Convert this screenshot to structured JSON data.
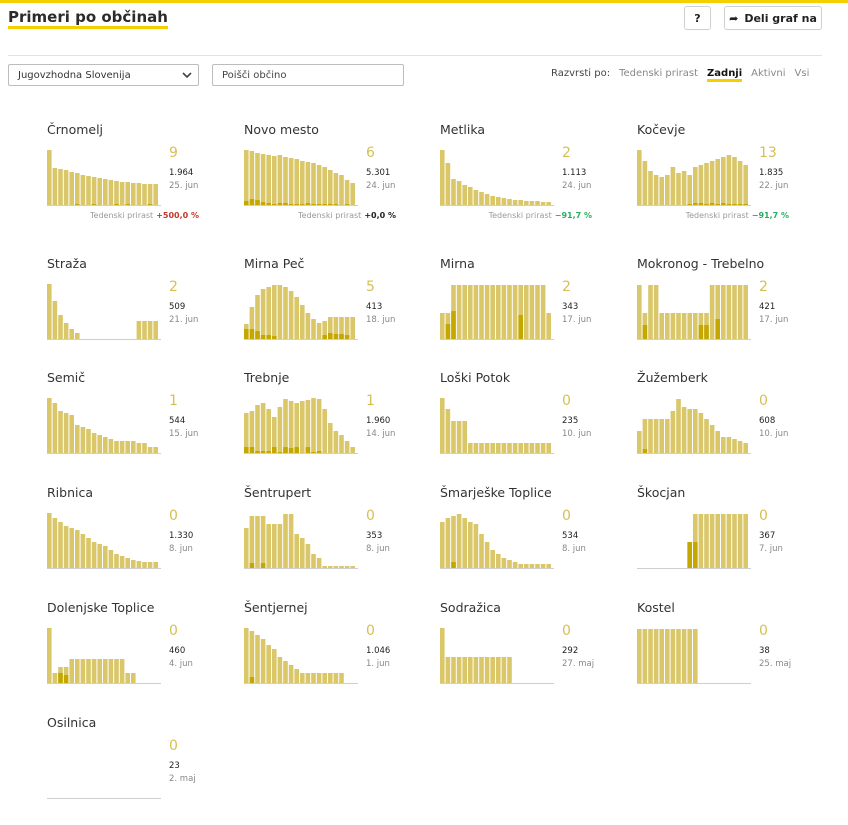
{
  "header": {
    "title": "Primeri po občinah",
    "help_label": "?",
    "share_label": "Deli graf na"
  },
  "filters": {
    "region_value": "Jugovzhodna Slovenija",
    "search_placeholder": "Poišči občino"
  },
  "sort": {
    "label": "Razvrsti po:",
    "options": [
      "Tedenski prirast",
      "Zadnji",
      "Aktivni",
      "Vsi"
    ],
    "active": "Zadnji"
  },
  "colors": {
    "accent": "#f4d000",
    "bar": "#d9c76a",
    "bar_dark": "#c4a800",
    "growth_up": "#c0392b",
    "growth_down": "#27ae60",
    "neutral": "#222222"
  },
  "growth_label": "Tedenski prirast",
  "municipalities": [
    {
      "name": "Črnomelj",
      "current": "9",
      "total": "1.964",
      "date": "25. jun",
      "growth": "+500,0 %",
      "growth_color": "up",
      "bars": [
        55,
        37,
        36,
        35,
        33,
        32,
        30,
        29,
        28,
        27,
        26,
        25,
        24,
        23,
        23,
        22,
        22,
        21,
        21,
        21
      ],
      "dark": [
        0,
        0,
        0,
        0,
        0,
        1,
        0,
        0,
        1,
        0,
        0,
        0,
        1,
        0,
        1,
        0,
        0,
        0,
        1,
        0
      ]
    },
    {
      "name": "Novo mesto",
      "current": "6",
      "total": "5.301",
      "date": "24. jun",
      "growth": "+0,0 %",
      "growth_color": "neutral",
      "bars": [
        55,
        54,
        52,
        51,
        50,
        49,
        50,
        48,
        47,
        46,
        44,
        43,
        42,
        40,
        38,
        35,
        32,
        30,
        25,
        22
      ],
      "dark": [
        4,
        6,
        5,
        3,
        2,
        1,
        2,
        2,
        1,
        1,
        1,
        2,
        1,
        1,
        1,
        1,
        1,
        0,
        1,
        0
      ]
    },
    {
      "name": "Metlika",
      "current": "2",
      "total": "1.113",
      "date": "24. jun",
      "growth": "−91,7 %",
      "growth_color": "down",
      "bars": [
        55,
        42,
        26,
        24,
        20,
        18,
        15,
        13,
        11,
        9,
        8,
        7,
        6,
        5,
        5,
        4,
        4,
        4,
        3,
        3
      ],
      "dark": [
        0,
        0,
        0,
        0,
        0,
        0,
        0,
        0,
        0,
        0,
        0,
        0,
        0,
        0,
        0,
        0,
        0,
        0,
        0,
        0
      ]
    },
    {
      "name": "Kočevje",
      "current": "13",
      "total": "1.835",
      "date": "22. jun",
      "growth": "−91,7 %",
      "growth_color": "down",
      "bars": [
        55,
        44,
        34,
        30,
        28,
        30,
        38,
        32,
        34,
        30,
        38,
        40,
        42,
        44,
        46,
        48,
        50,
        48,
        44,
        40
      ],
      "dark": [
        0,
        0,
        0,
        0,
        0,
        0,
        0,
        0,
        0,
        1,
        2,
        2,
        1,
        2,
        1,
        2,
        1,
        1,
        1,
        1
      ]
    },
    {
      "name": "Straža",
      "current": "2",
      "total": "509",
      "date": "21. jun",
      "growth": "",
      "growth_color": "",
      "bars": [
        55,
        38,
        24,
        16,
        10,
        6,
        0,
        0,
        0,
        0,
        0,
        0,
        0,
        0,
        0,
        0,
        18,
        18,
        18,
        18
      ],
      "dark": [
        0,
        0,
        0,
        0,
        0,
        0,
        0,
        0,
        0,
        0,
        0,
        0,
        0,
        0,
        0,
        0,
        0,
        0,
        0,
        0
      ]
    },
    {
      "name": "Mirna Peč",
      "current": "5",
      "total": "413",
      "date": "18. jun",
      "growth": "",
      "growth_color": "",
      "bars": [
        15,
        32,
        44,
        50,
        52,
        54,
        54,
        52,
        48,
        42,
        34,
        26,
        20,
        16,
        18,
        22,
        22,
        22,
        22,
        22
      ],
      "dark": [
        10,
        10,
        8,
        4,
        4,
        3,
        0,
        0,
        0,
        0,
        0,
        0,
        0,
        0,
        4,
        6,
        5,
        5,
        4,
        0
      ]
    },
    {
      "name": "Mirna",
      "current": "2",
      "total": "343",
      "date": "17. jun",
      "growth": "",
      "growth_color": "",
      "bars": [
        26,
        26,
        54,
        54,
        54,
        54,
        54,
        54,
        54,
        54,
        54,
        54,
        54,
        54,
        54,
        54,
        54,
        54,
        54,
        26
      ],
      "dark": [
        0,
        15,
        28,
        0,
        0,
        0,
        0,
        0,
        0,
        0,
        0,
        0,
        0,
        0,
        24,
        0,
        0,
        0,
        0,
        0
      ]
    },
    {
      "name": "Mokronog - Trebelno",
      "current": "2",
      "total": "421",
      "date": "17. jun",
      "growth": "",
      "growth_color": "",
      "bars": [
        54,
        26,
        54,
        54,
        26,
        26,
        26,
        26,
        26,
        26,
        26,
        26,
        26,
        54,
        54,
        54,
        54,
        54,
        54,
        54
      ],
      "dark": [
        0,
        14,
        0,
        0,
        0,
        0,
        0,
        0,
        0,
        0,
        0,
        14,
        14,
        0,
        20,
        0,
        0,
        0,
        0,
        0
      ]
    },
    {
      "name": "Semič",
      "current": "1",
      "total": "544",
      "date": "15. jun",
      "growth": "",
      "growth_color": "",
      "bars": [
        55,
        50,
        42,
        40,
        38,
        28,
        26,
        24,
        20,
        18,
        16,
        14,
        12,
        12,
        12,
        12,
        10,
        10,
        6,
        6
      ],
      "dark": [
        0,
        0,
        0,
        0,
        0,
        0,
        0,
        0,
        0,
        0,
        0,
        0,
        0,
        0,
        0,
        0,
        0,
        0,
        0,
        0
      ]
    },
    {
      "name": "Trebnje",
      "current": "1",
      "total": "1.960",
      "date": "14. jun",
      "growth": "",
      "growth_color": "",
      "bars": [
        40,
        42,
        48,
        50,
        44,
        36,
        46,
        54,
        52,
        50,
        52,
        53,
        55,
        54,
        44,
        30,
        22,
        18,
        12,
        6
      ],
      "dark": [
        6,
        6,
        2,
        2,
        2,
        6,
        1,
        6,
        5,
        6,
        0,
        6,
        1,
        2,
        0,
        0,
        0,
        0,
        0,
        0
      ]
    },
    {
      "name": "Loški Potok",
      "current": "0",
      "total": "235",
      "date": "10. jun",
      "growth": "",
      "growth_color": "",
      "bars": [
        55,
        44,
        32,
        32,
        32,
        10,
        10,
        10,
        10,
        10,
        10,
        10,
        10,
        10,
        10,
        10,
        10,
        10,
        10,
        10
      ],
      "dark": [
        0,
        0,
        0,
        0,
        0,
        0,
        0,
        0,
        0,
        0,
        0,
        0,
        0,
        0,
        0,
        0,
        0,
        0,
        0,
        0
      ]
    },
    {
      "name": "Žužemberk",
      "current": "0",
      "total": "608",
      "date": "10. jun",
      "growth": "",
      "growth_color": "",
      "bars": [
        22,
        34,
        34,
        34,
        34,
        34,
        42,
        54,
        46,
        44,
        44,
        40,
        34,
        28,
        22,
        16,
        16,
        14,
        12,
        10
      ],
      "dark": [
        0,
        4,
        0,
        0,
        0,
        0,
        0,
        0,
        0,
        0,
        0,
        0,
        0,
        0,
        0,
        0,
        0,
        0,
        0,
        0
      ]
    },
    {
      "name": "Ribnica",
      "current": "0",
      "total": "1.330",
      "date": "8. jun",
      "growth": "",
      "growth_color": "",
      "bars": [
        55,
        50,
        46,
        42,
        40,
        38,
        34,
        30,
        26,
        24,
        22,
        18,
        14,
        12,
        10,
        8,
        7,
        6,
        6,
        6
      ],
      "dark": [
        0,
        0,
        0,
        0,
        0,
        0,
        0,
        0,
        0,
        0,
        0,
        0,
        0,
        0,
        0,
        0,
        0,
        0,
        0,
        0
      ]
    },
    {
      "name": "Šentrupert",
      "current": "0",
      "total": "353",
      "date": "8. jun",
      "growth": "",
      "growth_color": "",
      "bars": [
        40,
        52,
        52,
        52,
        44,
        44,
        44,
        54,
        54,
        34,
        30,
        24,
        14,
        10,
        2,
        2,
        2,
        2,
        2,
        2
      ],
      "dark": [
        0,
        5,
        0,
        5,
        0,
        0,
        0,
        0,
        0,
        0,
        0,
        0,
        0,
        0,
        0,
        0,
        0,
        0,
        0,
        0
      ]
    },
    {
      "name": "Šmarješke Toplice",
      "current": "0",
      "total": "534",
      "date": "8. jun",
      "growth": "",
      "growth_color": "",
      "bars": [
        46,
        50,
        52,
        54,
        50,
        46,
        44,
        34,
        26,
        18,
        14,
        10,
        8,
        6,
        4,
        4,
        4,
        4,
        4,
        4
      ],
      "dark": [
        0,
        0,
        6,
        0,
        0,
        0,
        0,
        0,
        0,
        0,
        0,
        0,
        0,
        0,
        0,
        0,
        0,
        0,
        0,
        0
      ]
    },
    {
      "name": "Škocjan",
      "current": "0",
      "total": "367",
      "date": "7. jun",
      "growth": "",
      "growth_color": "",
      "bars": [
        0,
        0,
        0,
        0,
        0,
        0,
        0,
        0,
        0,
        26,
        54,
        54,
        54,
        54,
        54,
        54,
        54,
        54,
        54,
        54
      ],
      "dark": [
        0,
        0,
        0,
        0,
        0,
        0,
        0,
        0,
        0,
        26,
        26,
        0,
        0,
        0,
        0,
        0,
        0,
        0,
        0,
        0
      ]
    },
    {
      "name": "Dolenjske Toplice",
      "current": "0",
      "total": "460",
      "date": "4. jun",
      "growth": "",
      "growth_color": "",
      "bars": [
        55,
        10,
        16,
        16,
        24,
        24,
        24,
        24,
        24,
        24,
        24,
        24,
        24,
        24,
        10,
        10,
        0,
        0,
        0,
        0
      ],
      "dark": [
        0,
        0,
        10,
        8,
        0,
        0,
        0,
        0,
        0,
        0,
        0,
        0,
        0,
        0,
        0,
        0,
        0,
        0,
        0,
        0
      ]
    },
    {
      "name": "Šentjernej",
      "current": "0",
      "total": "1.046",
      "date": "1. jun",
      "growth": "",
      "growth_color": "",
      "bars": [
        55,
        52,
        48,
        44,
        38,
        34,
        26,
        22,
        18,
        14,
        10,
        10,
        10,
        10,
        10,
        10,
        10,
        10,
        0,
        0
      ],
      "dark": [
        0,
        6,
        0,
        0,
        0,
        0,
        0,
        0,
        0,
        0,
        0,
        0,
        0,
        0,
        0,
        0,
        0,
        0,
        0,
        0
      ]
    },
    {
      "name": "Sodražica",
      "current": "0",
      "total": "292",
      "date": "27. maj",
      "growth": "",
      "growth_color": "",
      "bars": [
        55,
        26,
        26,
        26,
        26,
        26,
        26,
        26,
        26,
        26,
        26,
        26,
        26,
        0,
        0,
        0,
        0,
        0,
        0,
        0
      ],
      "dark": [
        0,
        0,
        0,
        0,
        0,
        0,
        0,
        0,
        0,
        0,
        0,
        0,
        0,
        0,
        0,
        0,
        0,
        0,
        0,
        0
      ]
    },
    {
      "name": "Kostel",
      "current": "0",
      "total": "38",
      "date": "25. maj",
      "growth": "",
      "growth_color": "",
      "bars": [
        54,
        54,
        54,
        54,
        54,
        54,
        54,
        54,
        54,
        54,
        54,
        0,
        0,
        0,
        0,
        0,
        0,
        0,
        0,
        0
      ],
      "dark": [
        0,
        0,
        0,
        0,
        0,
        0,
        0,
        0,
        0,
        0,
        0,
        0,
        0,
        0,
        0,
        0,
        0,
        0,
        0,
        0
      ]
    },
    {
      "name": "Osilnica",
      "current": "0",
      "total": "23",
      "date": "2. maj",
      "growth": "",
      "growth_color": "",
      "bars": [
        0,
        0,
        0,
        0,
        0,
        0,
        0,
        0,
        0,
        0,
        0,
        0,
        0,
        0,
        0,
        0,
        0,
        0,
        0,
        0
      ],
      "dark": [
        0,
        0,
        0,
        0,
        0,
        0,
        0,
        0,
        0,
        0,
        0,
        0,
        0,
        0,
        0,
        0,
        0,
        0,
        0,
        0
      ]
    }
  ]
}
